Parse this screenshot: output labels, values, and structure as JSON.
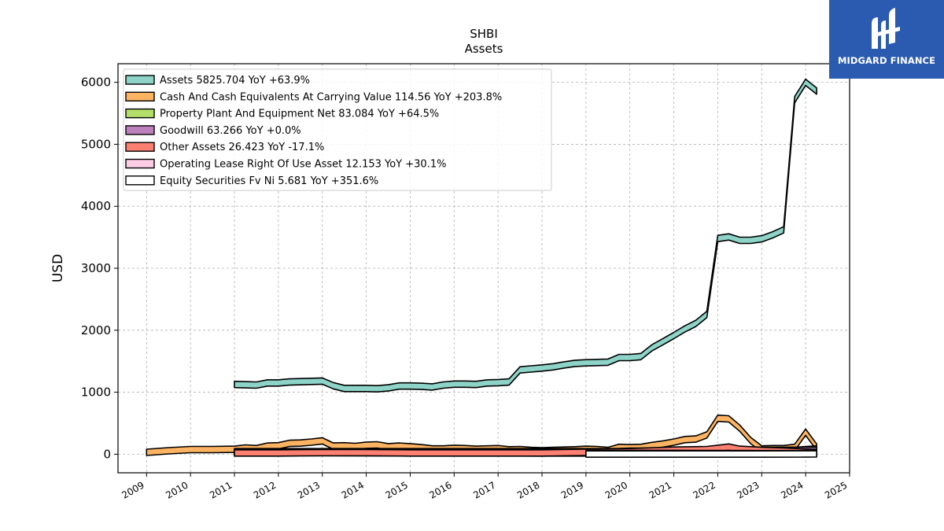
{
  "chart_data": {
    "type": "area",
    "title": "SHBI",
    "subtitle": "Assets",
    "ylabel": "USD",
    "xlabel": "",
    "xlim": [
      2008.35,
      2025.0
    ],
    "ylim": [
      -300,
      6300
    ],
    "x_ticks": [
      2009,
      2010,
      2011,
      2012,
      2013,
      2014,
      2015,
      2016,
      2017,
      2018,
      2019,
      2020,
      2021,
      2022,
      2023,
      2024,
      2025
    ],
    "y_ticks": [
      0,
      1000,
      2000,
      3000,
      4000,
      5000,
      6000
    ],
    "grid": true,
    "legend_position": "top-left",
    "series": [
      {
        "name": "Assets",
        "legend": "Assets  5825.704 YoY +63.9%",
        "color": "#8dd3c7",
        "points": [
          [
            2011.0,
            1125
          ],
          [
            2011.25,
            1120
          ],
          [
            2011.5,
            1115
          ],
          [
            2011.75,
            1150
          ],
          [
            2012.0,
            1150
          ],
          [
            2012.25,
            1165
          ],
          [
            2012.5,
            1170
          ],
          [
            2012.75,
            1175
          ],
          [
            2013.0,
            1180
          ],
          [
            2013.25,
            1105
          ],
          [
            2013.5,
            1060
          ],
          [
            2013.75,
            1060
          ],
          [
            2014.0,
            1060
          ],
          [
            2014.25,
            1055
          ],
          [
            2014.5,
            1070
          ],
          [
            2014.75,
            1100
          ],
          [
            2015.0,
            1100
          ],
          [
            2015.25,
            1095
          ],
          [
            2015.5,
            1085
          ],
          [
            2015.75,
            1115
          ],
          [
            2016.0,
            1130
          ],
          [
            2016.25,
            1130
          ],
          [
            2016.5,
            1125
          ],
          [
            2016.75,
            1150
          ],
          [
            2017.0,
            1155
          ],
          [
            2017.25,
            1165
          ],
          [
            2017.5,
            1360
          ],
          [
            2017.75,
            1375
          ],
          [
            2018.0,
            1390
          ],
          [
            2018.25,
            1410
          ],
          [
            2018.5,
            1440
          ],
          [
            2018.75,
            1465
          ],
          [
            2019.0,
            1475
          ],
          [
            2019.25,
            1480
          ],
          [
            2019.5,
            1485
          ],
          [
            2019.75,
            1560
          ],
          [
            2020.0,
            1560
          ],
          [
            2020.25,
            1575
          ],
          [
            2020.5,
            1715
          ],
          [
            2020.75,
            1815
          ],
          [
            2021.0,
            1915
          ],
          [
            2021.25,
            2020
          ],
          [
            2021.5,
            2110
          ],
          [
            2021.75,
            2255
          ],
          [
            2022.0,
            3480
          ],
          [
            2022.25,
            3505
          ],
          [
            2022.5,
            3450
          ],
          [
            2022.75,
            3450
          ],
          [
            2023.0,
            3475
          ],
          [
            2023.25,
            3540
          ],
          [
            2023.5,
            3620
          ],
          [
            2023.75,
            5720
          ],
          [
            2024.0,
            6000
          ],
          [
            2024.25,
            5860
          ]
        ]
      },
      {
        "name": "Cash And Cash Equivalents At Carrying Value",
        "legend": "Cash And Cash Equivalents At Carrying Value  114.56 YoY +203.8%",
        "color": "#fdb462",
        "points": [
          [
            2009.0,
            30
          ],
          [
            2009.5,
            55
          ],
          [
            2010.0,
            75
          ],
          [
            2010.5,
            75
          ],
          [
            2011.0,
            80
          ],
          [
            2011.25,
            100
          ],
          [
            2011.5,
            90
          ],
          [
            2011.75,
            130
          ],
          [
            2012.0,
            135
          ],
          [
            2012.25,
            175
          ],
          [
            2012.5,
            180
          ],
          [
            2012.75,
            195
          ],
          [
            2013.0,
            215
          ],
          [
            2013.25,
            130
          ],
          [
            2013.5,
            135
          ],
          [
            2013.75,
            125
          ],
          [
            2014.0,
            145
          ],
          [
            2014.25,
            150
          ],
          [
            2014.5,
            120
          ],
          [
            2014.75,
            130
          ],
          [
            2015.0,
            120
          ],
          [
            2015.25,
            105
          ],
          [
            2015.5,
            85
          ],
          [
            2015.75,
            85
          ],
          [
            2016.0,
            95
          ],
          [
            2016.25,
            90
          ],
          [
            2016.5,
            80
          ],
          [
            2016.75,
            85
          ],
          [
            2017.0,
            90
          ],
          [
            2017.25,
            70
          ],
          [
            2017.5,
            75
          ],
          [
            2017.75,
            60
          ],
          [
            2018.0,
            55
          ],
          [
            2018.25,
            60
          ],
          [
            2018.5,
            65
          ],
          [
            2018.75,
            70
          ],
          [
            2019.0,
            80
          ],
          [
            2019.25,
            75
          ],
          [
            2019.5,
            60
          ],
          [
            2019.75,
            110
          ],
          [
            2020.0,
            105
          ],
          [
            2020.25,
            110
          ],
          [
            2020.5,
            140
          ],
          [
            2020.75,
            165
          ],
          [
            2021.0,
            195
          ],
          [
            2021.25,
            235
          ],
          [
            2021.5,
            245
          ],
          [
            2021.75,
            310
          ],
          [
            2022.0,
            580
          ],
          [
            2022.25,
            570
          ],
          [
            2022.5,
            420
          ],
          [
            2022.75,
            220
          ],
          [
            2023.0,
            85
          ],
          [
            2023.25,
            90
          ],
          [
            2023.5,
            90
          ],
          [
            2023.75,
            110
          ],
          [
            2024.0,
            355
          ],
          [
            2024.25,
            115
          ]
        ]
      },
      {
        "name": "Property Plant And Equipment Net",
        "legend": "Property Plant And Equipment Net  83.084 YoY +64.5%",
        "color": "#b3de69",
        "points": [
          [
            2011.0,
            30
          ],
          [
            2012.0,
            30
          ],
          [
            2013.0,
            28
          ],
          [
            2014.0,
            25
          ],
          [
            2015.0,
            25
          ],
          [
            2016.0,
            22
          ],
          [
            2017.0,
            22
          ],
          [
            2018.0,
            20
          ],
          [
            2019.0,
            20
          ],
          [
            2020.0,
            48
          ],
          [
            2021.0,
            48
          ],
          [
            2022.0,
            52
          ],
          [
            2023.0,
            55
          ],
          [
            2023.75,
            60
          ],
          [
            2024.0,
            75
          ],
          [
            2024.25,
            83
          ]
        ]
      },
      {
        "name": "Goodwill",
        "legend": "Goodwill  63.266 YoY +0.0%",
        "color": "#bc80bd",
        "points": [
          [
            2011.0,
            40
          ],
          [
            2012.0,
            40
          ],
          [
            2013.0,
            40
          ],
          [
            2014.0,
            40
          ],
          [
            2015.0,
            40
          ],
          [
            2016.0,
            40
          ],
          [
            2017.0,
            40
          ],
          [
            2018.0,
            40
          ],
          [
            2019.0,
            40
          ],
          [
            2020.0,
            40
          ],
          [
            2021.0,
            40
          ],
          [
            2022.0,
            63
          ],
          [
            2023.0,
            63
          ],
          [
            2024.0,
            63
          ],
          [
            2024.25,
            63
          ]
        ]
      },
      {
        "name": "Other Assets",
        "legend": "Other Assets  26.423 YoY -17.1%",
        "color": "#fb8072",
        "points": [
          [
            2011.0,
            20
          ],
          [
            2012.0,
            20
          ],
          [
            2013.0,
            25
          ],
          [
            2014.0,
            25
          ],
          [
            2015.0,
            20
          ],
          [
            2016.0,
            20
          ],
          [
            2017.0,
            20
          ],
          [
            2018.0,
            20
          ],
          [
            2019.0,
            30
          ],
          [
            2020.0,
            40
          ],
          [
            2021.0,
            65
          ],
          [
            2021.75,
            75
          ],
          [
            2022.0,
            95
          ],
          [
            2022.25,
            115
          ],
          [
            2022.5,
            80
          ],
          [
            2023.0,
            60
          ],
          [
            2023.5,
            50
          ],
          [
            2024.0,
            32
          ],
          [
            2024.25,
            26
          ]
        ]
      },
      {
        "name": "Operating Lease Right Of Use Asset",
        "legend": "Operating Lease Right Of Use Asset  12.153 YoY +30.1%",
        "color": "#fccde5",
        "points": [
          [
            2019.0,
            12
          ],
          [
            2020.0,
            12
          ],
          [
            2021.0,
            12
          ],
          [
            2022.0,
            10
          ],
          [
            2023.0,
            9
          ],
          [
            2024.0,
            10
          ],
          [
            2024.25,
            12
          ]
        ]
      },
      {
        "name": "Equity Securities Fv Ni",
        "legend": "Equity Securities Fv Ni  5.681 YoY +351.6%",
        "color": "#ffffff",
        "points": [
          [
            2019.0,
            2
          ],
          [
            2020.0,
            2
          ],
          [
            2021.0,
            2
          ],
          [
            2022.0,
            2
          ],
          [
            2023.0,
            2
          ],
          [
            2024.0,
            3
          ],
          [
            2024.25,
            6
          ]
        ]
      }
    ]
  },
  "logo": {
    "text": "MIDGARD FINANCE",
    "background": "#2a5bb0"
  }
}
